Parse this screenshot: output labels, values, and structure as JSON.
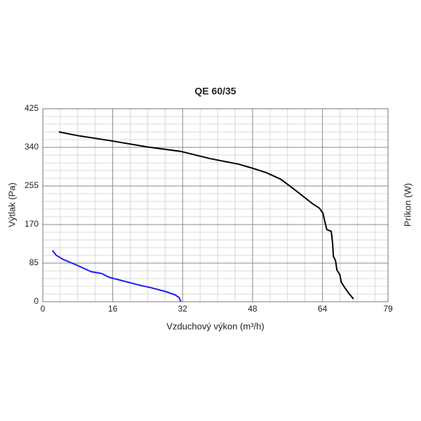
{
  "chart_data": {
    "type": "line",
    "title": "QE 60/35",
    "xlabel": "Vzduchový výkon (m³/h)",
    "ylabel": "Výtlak (Pa)",
    "y2label": "Príkon (W)",
    "xlim": [
      0,
      79
    ],
    "xticks": [
      0,
      16,
      32,
      48,
      64,
      79
    ],
    "ylim": [
      0,
      425
    ],
    "yticks": [
      0,
      85,
      170,
      255,
      340,
      425
    ],
    "grid": true,
    "xminor": 4,
    "yminor": 5,
    "series": [
      {
        "color": "#000000",
        "x": [
          3.7,
          7.9,
          15.9,
          23.9,
          31.6,
          38.4,
          44.8,
          48,
          51.2,
          54.4,
          56.8,
          59.2,
          61.7,
          63.3,
          64.1,
          64.5,
          65,
          66,
          66.3,
          66.5,
          67,
          67.3,
          68,
          68.3,
          69.1,
          70,
          71.1
        ],
        "values": [
          374,
          366,
          354,
          341,
          331,
          315,
          303,
          294,
          284,
          270,
          253,
          235,
          216,
          206,
          195,
          178,
          159,
          155,
          131,
          100,
          90,
          70,
          59,
          43,
          31,
          19,
          6
        ]
      },
      {
        "color": "#1a1aff",
        "x": [
          2.2,
          3.1,
          4.7,
          7.9,
          11.1,
          13.5,
          15.1,
          18.3,
          22.3,
          24.7,
          27.9,
          30.3,
          31.2,
          31.6
        ],
        "values": [
          113,
          102,
          93,
          80,
          66,
          62,
          54,
          46,
          36,
          31,
          23,
          15,
          9,
          0
        ]
      }
    ]
  }
}
